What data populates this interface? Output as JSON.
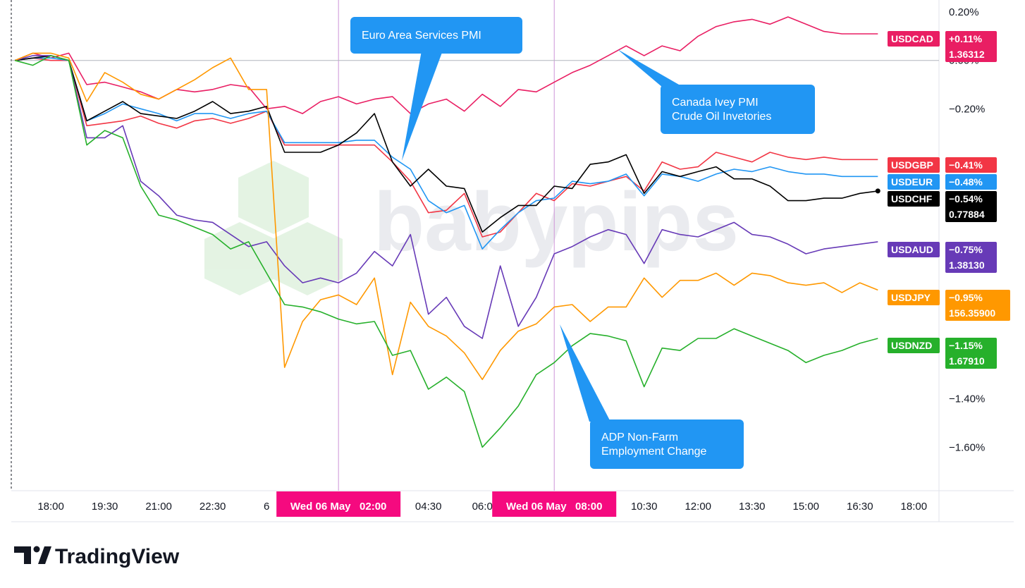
{
  "chart_data": {
    "type": "line",
    "ylim": [
      -1.78,
      0.25
    ],
    "y_ticks": [
      "0.20%",
      "0.00%",
      "−0.20%",
      "−1.40%",
      "−1.60%"
    ],
    "y_tick_values": [
      0.2,
      0.0,
      -0.2,
      -1.4,
      -1.6
    ],
    "x_ticks": [
      "18:00",
      "19:30",
      "21:00",
      "22:30",
      "6",
      "04:30",
      "06:0",
      "10:30",
      "12:00",
      "13:30",
      "15:00",
      "16:30",
      "18:00"
    ],
    "x_tick_hours": [
      18,
      19.5,
      21,
      22.5,
      24,
      28.5,
      30,
      34.5,
      36,
      37.5,
      39,
      40.5,
      42
    ],
    "x_range_hours": [
      16.9,
      42.7
    ],
    "vlines_hours": [
      26,
      32
    ],
    "crosshair_hour": 16.9,
    "x_highlights": [
      {
        "label": "Wed 06 May   02:00",
        "hour": 26
      },
      {
        "label": "Wed 06 May   08:00",
        "hour": 32
      }
    ],
    "series": [
      {
        "name": "USDCAD",
        "color": "#e91e63",
        "pct": "+0.11%",
        "price": "1.36312",
        "x": [
          17,
          17.5,
          18,
          18.5,
          19,
          19.5,
          20,
          20.5,
          21,
          21.5,
          22,
          22.5,
          23,
          23.5,
          24,
          24.5,
          25,
          25.5,
          26,
          26.5,
          27,
          27.5,
          28,
          28.5,
          29,
          29.5,
          30,
          30.5,
          31,
          31.5,
          32,
          32.5,
          33,
          33.5,
          34,
          34.5,
          35,
          35.5,
          36,
          36.5,
          37,
          37.5,
          38,
          38.5,
          39,
          39.5,
          40,
          40.5,
          41
        ],
        "y": [
          0,
          0.03,
          0.01,
          0.03,
          -0.1,
          -0.09,
          -0.11,
          -0.13,
          -0.16,
          -0.12,
          -0.13,
          -0.12,
          -0.1,
          -0.11,
          -0.2,
          -0.19,
          -0.22,
          -0.17,
          -0.15,
          -0.18,
          -0.16,
          -0.15,
          -0.22,
          -0.18,
          -0.16,
          -0.21,
          -0.14,
          -0.19,
          -0.12,
          -0.13,
          -0.09,
          -0.05,
          -0.02,
          0.02,
          0.06,
          0.02,
          0.06,
          0.04,
          0.1,
          0.14,
          0.16,
          0.17,
          0.15,
          0.18,
          0.15,
          0.12,
          0.11,
          0.11,
          0.11
        ]
      },
      {
        "name": "USDGBP",
        "color": "#f23645",
        "pct": "−0.41%",
        "price": "",
        "x": [
          17,
          17.5,
          18,
          18.5,
          19,
          19.5,
          20,
          20.5,
          21,
          21.5,
          22,
          22.5,
          23,
          23.5,
          24,
          24.5,
          25,
          25.5,
          26,
          26.5,
          27,
          27.5,
          28,
          28.5,
          29,
          29.5,
          30,
          30.5,
          31,
          31.5,
          32,
          32.5,
          33,
          33.5,
          34,
          34.5,
          35,
          35.5,
          36,
          36.5,
          37,
          37.5,
          38,
          38.5,
          39,
          39.5,
          40,
          40.5,
          41
        ],
        "y": [
          0,
          0.01,
          0,
          0,
          -0.27,
          -0.26,
          -0.25,
          -0.23,
          -0.26,
          -0.28,
          -0.25,
          -0.24,
          -0.26,
          -0.24,
          -0.21,
          -0.35,
          -0.35,
          -0.35,
          -0.35,
          -0.35,
          -0.35,
          -0.42,
          -0.5,
          -0.63,
          -0.62,
          -0.55,
          -0.73,
          -0.71,
          -0.63,
          -0.55,
          -0.58,
          -0.51,
          -0.52,
          -0.5,
          -0.48,
          -0.54,
          -0.42,
          -0.45,
          -0.44,
          -0.38,
          -0.4,
          -0.42,
          -0.38,
          -0.4,
          -0.41,
          -0.4,
          -0.41,
          -0.41,
          -0.41
        ]
      },
      {
        "name": "USDEUR",
        "color": "#2196f3",
        "pct": "−0.48%",
        "price": "",
        "x": [
          17,
          17.5,
          18,
          18.5,
          19,
          19.5,
          20,
          20.5,
          21,
          21.5,
          22,
          22.5,
          23,
          23.5,
          24,
          24.5,
          25,
          25.5,
          26,
          26.5,
          27,
          27.5,
          28,
          28.5,
          29,
          29.5,
          30,
          30.5,
          31,
          31.5,
          32,
          32.5,
          33,
          33.5,
          34,
          34.5,
          35,
          35.5,
          36,
          36.5,
          37,
          37.5,
          38,
          38.5,
          39,
          39.5,
          40,
          40.5,
          41
        ],
        "y": [
          0,
          0.01,
          0.01,
          0,
          -0.25,
          -0.22,
          -0.18,
          -0.2,
          -0.22,
          -0.25,
          -0.22,
          -0.22,
          -0.24,
          -0.22,
          -0.21,
          -0.34,
          -0.34,
          -0.34,
          -0.34,
          -0.33,
          -0.33,
          -0.4,
          -0.45,
          -0.58,
          -0.63,
          -0.6,
          -0.78,
          -0.7,
          -0.63,
          -0.58,
          -0.57,
          -0.5,
          -0.51,
          -0.5,
          -0.47,
          -0.56,
          -0.47,
          -0.48,
          -0.5,
          -0.47,
          -0.45,
          -0.46,
          -0.44,
          -0.46,
          -0.47,
          -0.47,
          -0.48,
          -0.48,
          -0.48
        ]
      },
      {
        "name": "USDCHF",
        "color": "#000000",
        "pct": "−0.54%",
        "price": "0.77884",
        "x": [
          17,
          17.5,
          18,
          18.5,
          19,
          19.5,
          20,
          20.5,
          21,
          21.5,
          22,
          22.5,
          23,
          23.5,
          24,
          24.5,
          25,
          25.5,
          26,
          26.5,
          27,
          27.5,
          28,
          28.5,
          29,
          29.5,
          30,
          30.5,
          31,
          31.5,
          32,
          32.5,
          33,
          33.5,
          34,
          34.5,
          35,
          35.5,
          36,
          36.5,
          37,
          37.5,
          38,
          38.5,
          39,
          39.5,
          40,
          40.5,
          41
        ],
        "y": [
          0,
          0.01,
          0.02,
          0,
          -0.25,
          -0.21,
          -0.17,
          -0.22,
          -0.23,
          -0.24,
          -0.21,
          -0.17,
          -0.22,
          -0.21,
          -0.19,
          -0.38,
          -0.38,
          -0.38,
          -0.35,
          -0.3,
          -0.22,
          -0.42,
          -0.52,
          -0.45,
          -0.52,
          -0.53,
          -0.71,
          -0.65,
          -0.6,
          -0.6,
          -0.52,
          -0.53,
          -0.43,
          -0.42,
          -0.39,
          -0.55,
          -0.46,
          -0.48,
          -0.46,
          -0.44,
          -0.49,
          -0.49,
          -0.52,
          -0.58,
          -0.58,
          -0.57,
          -0.57,
          -0.55,
          -0.54
        ]
      },
      {
        "name": "USDAUD",
        "color": "#673ab7",
        "pct": "−0.75%",
        "price": "1.38130",
        "x": [
          17,
          17.5,
          18,
          18.5,
          19,
          19.5,
          20,
          20.5,
          21,
          21.5,
          22,
          22.5,
          23,
          23.5,
          24,
          24.5,
          25,
          25.5,
          26,
          26.5,
          27,
          27.5,
          28,
          28.5,
          29,
          29.5,
          30,
          30.5,
          31,
          31.5,
          32,
          32.5,
          33,
          33.5,
          34,
          34.5,
          35,
          35.5,
          36,
          36.5,
          37,
          37.5,
          38,
          38.5,
          39,
          39.5,
          40,
          40.5,
          41
        ],
        "y": [
          0,
          0.02,
          0.02,
          0,
          -0.32,
          -0.32,
          -0.27,
          -0.5,
          -0.56,
          -0.64,
          -0.66,
          -0.67,
          -0.72,
          -0.77,
          -0.75,
          -0.85,
          -0.92,
          -0.9,
          -0.92,
          -0.88,
          -0.79,
          -0.85,
          -0.72,
          -1.05,
          -0.98,
          -1.1,
          -1.15,
          -0.85,
          -1.1,
          -0.98,
          -0.8,
          -0.77,
          -0.73,
          -0.7,
          -0.72,
          -0.84,
          -0.7,
          -0.72,
          -0.73,
          -0.7,
          -0.67,
          -0.72,
          -0.73,
          -0.76,
          -0.8,
          -0.78,
          -0.77,
          -0.76,
          -0.75
        ]
      },
      {
        "name": "USDJPY",
        "color": "#ff9800",
        "pct": "−0.95%",
        "price": "156.35900",
        "x": [
          17,
          17.5,
          18,
          18.5,
          19,
          19.5,
          20,
          20.5,
          21,
          21.5,
          22,
          22.5,
          23,
          23.5,
          24,
          24.5,
          25,
          25.5,
          26,
          26.5,
          27,
          27.5,
          28,
          28.5,
          29,
          29.5,
          30,
          30.5,
          31,
          31.5,
          32,
          32.5,
          33,
          33.5,
          34,
          34.5,
          35,
          35.5,
          36,
          36.5,
          37,
          37.5,
          38,
          38.5,
          39,
          39.5,
          40,
          40.5,
          41
        ],
        "y": [
          0,
          0.03,
          0.03,
          0.01,
          -0.17,
          -0.05,
          -0.09,
          -0.14,
          -0.16,
          -0.12,
          -0.08,
          -0.03,
          0.01,
          -0.12,
          -0.12,
          -1.27,
          -1.08,
          -0.99,
          -0.97,
          -1.01,
          -0.9,
          -1.3,
          -1.0,
          -1.1,
          -1.14,
          -1.21,
          -1.32,
          -1.2,
          -1.12,
          -1.09,
          -1.02,
          -1.01,
          -1.08,
          -1.02,
          -1.02,
          -0.9,
          -0.98,
          -0.91,
          -0.91,
          -0.88,
          -0.93,
          -0.88,
          -0.89,
          -0.92,
          -0.93,
          -0.92,
          -0.96,
          -0.92,
          -0.95
        ]
      },
      {
        "name": "USDNZD",
        "color": "#26b02b",
        "pct": "−1.15%",
        "price": "1.67910",
        "x": [
          17,
          17.5,
          18,
          18.5,
          19,
          19.5,
          20,
          20.5,
          21,
          21.5,
          22,
          22.5,
          23,
          23.5,
          24,
          24.5,
          25,
          25.5,
          26,
          26.5,
          27,
          27.5,
          28,
          28.5,
          29,
          29.5,
          30,
          30.5,
          31,
          31.5,
          32,
          32.5,
          33,
          33.5,
          34,
          34.5,
          35,
          35.5,
          36,
          36.5,
          37,
          37.5,
          38,
          38.5,
          39,
          39.5,
          40,
          40.5,
          41
        ],
        "y": [
          0,
          -0.02,
          0.02,
          0,
          -0.35,
          -0.29,
          -0.32,
          -0.52,
          -0.64,
          -0.66,
          -0.69,
          -0.72,
          -0.78,
          -0.75,
          -0.88,
          -1.01,
          -1.02,
          -1.04,
          -1.07,
          -1.09,
          -1.08,
          -1.22,
          -1.2,
          -1.36,
          -1.31,
          -1.37,
          -1.6,
          -1.52,
          -1.43,
          -1.3,
          -1.25,
          -1.18,
          -1.13,
          -1.14,
          -1.16,
          -1.35,
          -1.19,
          -1.2,
          -1.15,
          -1.15,
          -1.11,
          -1.14,
          -1.17,
          -1.2,
          -1.25,
          -1.22,
          -1.2,
          -1.17,
          -1.15
        ]
      }
    ],
    "annotations": [
      {
        "lines": [
          "Euro Area Services PMI"
        ]
      },
      {
        "lines": [
          "Canada Ivey PMI",
          "Crude Oil Invetories"
        ]
      },
      {
        "lines": [
          "ADP Non-Farm",
          "Employment Change"
        ]
      }
    ]
  },
  "watermark": "babypips",
  "brand": "TradingView"
}
